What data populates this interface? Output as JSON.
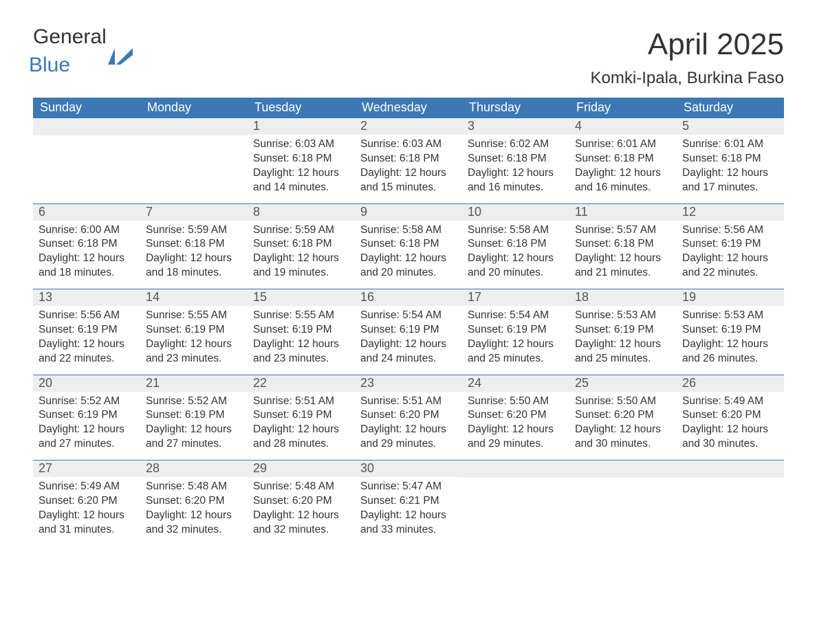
{
  "brand": {
    "word1": "General",
    "word2": "Blue",
    "accent_color": "#3c78b4"
  },
  "title": "April 2025",
  "location": "Komki-Ipala, Burkina Faso",
  "colors": {
    "header_bg": "#3c78b4",
    "header_text": "#ffffff",
    "daynum_bg": "#eeeeee",
    "daynum_text": "#555555",
    "body_text": "#333333",
    "page_bg": "#ffffff",
    "row_divider": "#3c78b4"
  },
  "typography": {
    "title_fontsize": 44,
    "location_fontsize": 24,
    "header_fontsize": 18,
    "daynum_fontsize": 18,
    "body_fontsize": 15.5,
    "font_family": "Arial"
  },
  "layout": {
    "columns": 7,
    "rows": 5,
    "col_width_pct": 14.2857
  },
  "day_headers": [
    "Sunday",
    "Monday",
    "Tuesday",
    "Wednesday",
    "Thursday",
    "Friday",
    "Saturday"
  ],
  "weeks": [
    [
      null,
      null,
      {
        "n": "1",
        "sunrise": "6:03 AM",
        "sunset": "6:18 PM",
        "daylight": "12 hours and 14 minutes."
      },
      {
        "n": "2",
        "sunrise": "6:03 AM",
        "sunset": "6:18 PM",
        "daylight": "12 hours and 15 minutes."
      },
      {
        "n": "3",
        "sunrise": "6:02 AM",
        "sunset": "6:18 PM",
        "daylight": "12 hours and 16 minutes."
      },
      {
        "n": "4",
        "sunrise": "6:01 AM",
        "sunset": "6:18 PM",
        "daylight": "12 hours and 16 minutes."
      },
      {
        "n": "5",
        "sunrise": "6:01 AM",
        "sunset": "6:18 PM",
        "daylight": "12 hours and 17 minutes."
      }
    ],
    [
      {
        "n": "6",
        "sunrise": "6:00 AM",
        "sunset": "6:18 PM",
        "daylight": "12 hours and 18 minutes."
      },
      {
        "n": "7",
        "sunrise": "5:59 AM",
        "sunset": "6:18 PM",
        "daylight": "12 hours and 18 minutes."
      },
      {
        "n": "8",
        "sunrise": "5:59 AM",
        "sunset": "6:18 PM",
        "daylight": "12 hours and 19 minutes."
      },
      {
        "n": "9",
        "sunrise": "5:58 AM",
        "sunset": "6:18 PM",
        "daylight": "12 hours and 20 minutes."
      },
      {
        "n": "10",
        "sunrise": "5:58 AM",
        "sunset": "6:18 PM",
        "daylight": "12 hours and 20 minutes."
      },
      {
        "n": "11",
        "sunrise": "5:57 AM",
        "sunset": "6:18 PM",
        "daylight": "12 hours and 21 minutes."
      },
      {
        "n": "12",
        "sunrise": "5:56 AM",
        "sunset": "6:19 PM",
        "daylight": "12 hours and 22 minutes."
      }
    ],
    [
      {
        "n": "13",
        "sunrise": "5:56 AM",
        "sunset": "6:19 PM",
        "daylight": "12 hours and 22 minutes."
      },
      {
        "n": "14",
        "sunrise": "5:55 AM",
        "sunset": "6:19 PM",
        "daylight": "12 hours and 23 minutes."
      },
      {
        "n": "15",
        "sunrise": "5:55 AM",
        "sunset": "6:19 PM",
        "daylight": "12 hours and 23 minutes."
      },
      {
        "n": "16",
        "sunrise": "5:54 AM",
        "sunset": "6:19 PM",
        "daylight": "12 hours and 24 minutes."
      },
      {
        "n": "17",
        "sunrise": "5:54 AM",
        "sunset": "6:19 PM",
        "daylight": "12 hours and 25 minutes."
      },
      {
        "n": "18",
        "sunrise": "5:53 AM",
        "sunset": "6:19 PM",
        "daylight": "12 hours and 25 minutes."
      },
      {
        "n": "19",
        "sunrise": "5:53 AM",
        "sunset": "6:19 PM",
        "daylight": "12 hours and 26 minutes."
      }
    ],
    [
      {
        "n": "20",
        "sunrise": "5:52 AM",
        "sunset": "6:19 PM",
        "daylight": "12 hours and 27 minutes."
      },
      {
        "n": "21",
        "sunrise": "5:52 AM",
        "sunset": "6:19 PM",
        "daylight": "12 hours and 27 minutes."
      },
      {
        "n": "22",
        "sunrise": "5:51 AM",
        "sunset": "6:19 PM",
        "daylight": "12 hours and 28 minutes."
      },
      {
        "n": "23",
        "sunrise": "5:51 AM",
        "sunset": "6:20 PM",
        "daylight": "12 hours and 29 minutes."
      },
      {
        "n": "24",
        "sunrise": "5:50 AM",
        "sunset": "6:20 PM",
        "daylight": "12 hours and 29 minutes."
      },
      {
        "n": "25",
        "sunrise": "5:50 AM",
        "sunset": "6:20 PM",
        "daylight": "12 hours and 30 minutes."
      },
      {
        "n": "26",
        "sunrise": "5:49 AM",
        "sunset": "6:20 PM",
        "daylight": "12 hours and 30 minutes."
      }
    ],
    [
      {
        "n": "27",
        "sunrise": "5:49 AM",
        "sunset": "6:20 PM",
        "daylight": "12 hours and 31 minutes."
      },
      {
        "n": "28",
        "sunrise": "5:48 AM",
        "sunset": "6:20 PM",
        "daylight": "12 hours and 32 minutes."
      },
      {
        "n": "29",
        "sunrise": "5:48 AM",
        "sunset": "6:20 PM",
        "daylight": "12 hours and 32 minutes."
      },
      {
        "n": "30",
        "sunrise": "5:47 AM",
        "sunset": "6:21 PM",
        "daylight": "12 hours and 33 minutes."
      },
      null,
      null,
      null
    ]
  ],
  "labels": {
    "sunrise": "Sunrise: ",
    "sunset": "Sunset: ",
    "daylight": "Daylight: "
  }
}
